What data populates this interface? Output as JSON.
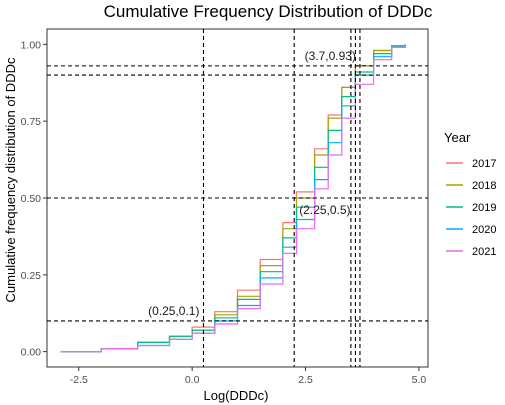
{
  "chart_data": {
    "type": "line",
    "title": "Cumulative Frequency Distribution of DDDc",
    "xlabel": "Log(DDDc)",
    "ylabel": "Cumulative frequency distribution of DDDc",
    "xlim": [
      -3.2,
      5.2
    ],
    "ylim": [
      -0.05,
      1.05
    ],
    "x_ticks": [
      {
        "value": -2.5,
        "label": "-2.5"
      },
      {
        "value": 0.0,
        "label": "0.0"
      },
      {
        "value": 2.5,
        "label": "2.5"
      },
      {
        "value": 5.0,
        "label": "5.0"
      }
    ],
    "y_ticks": [
      {
        "value": 0.0,
        "label": "0.00"
      },
      {
        "value": 0.25,
        "label": "0.25"
      },
      {
        "value": 0.5,
        "label": "0.50"
      },
      {
        "value": 0.75,
        "label": "0.75"
      },
      {
        "value": 1.0,
        "label": "1.00"
      }
    ],
    "grid": false,
    "legend_title": "Year",
    "legend_position": "right",
    "reference_lines": {
      "vertical": [
        0.25,
        2.25,
        3.5,
        3.6,
        3.7
      ],
      "horizontal": [
        0.1,
        0.5,
        0.9,
        0.93
      ]
    },
    "annotations": [
      {
        "text": "(0.25,0.1)",
        "x": 0.25,
        "y": 0.1,
        "anchor": "above-left"
      },
      {
        "text": "(2.25,0.5)",
        "x": 2.25,
        "y": 0.5,
        "anchor": "below-right"
      },
      {
        "text": "(3.7,0.93)",
        "x": 3.7,
        "y": 0.93,
        "anchor": "above-left"
      }
    ],
    "series": [
      {
        "name": "2017",
        "color": "#F8766D",
        "points": [
          [
            -2.9,
            0.0
          ],
          [
            -2.0,
            0.01
          ],
          [
            -1.2,
            0.03
          ],
          [
            -0.5,
            0.05
          ],
          [
            0.0,
            0.08
          ],
          [
            0.5,
            0.13
          ],
          [
            1.0,
            0.2
          ],
          [
            1.5,
            0.3
          ],
          [
            2.0,
            0.42
          ],
          [
            2.3,
            0.52
          ],
          [
            2.7,
            0.66
          ],
          [
            3.0,
            0.77
          ],
          [
            3.3,
            0.86
          ],
          [
            3.6,
            0.93
          ],
          [
            4.0,
            0.98
          ],
          [
            4.4,
            0.995
          ],
          [
            4.7,
            1.0
          ]
        ]
      },
      {
        "name": "2018",
        "color": "#A3A500",
        "points": [
          [
            -2.9,
            0.0
          ],
          [
            -2.0,
            0.01
          ],
          [
            -1.2,
            0.03
          ],
          [
            -0.5,
            0.05
          ],
          [
            0.0,
            0.07
          ],
          [
            0.5,
            0.12
          ],
          [
            1.0,
            0.18
          ],
          [
            1.5,
            0.28
          ],
          [
            2.0,
            0.4
          ],
          [
            2.3,
            0.5
          ],
          [
            2.7,
            0.64
          ],
          [
            3.0,
            0.76
          ],
          [
            3.3,
            0.86
          ],
          [
            3.6,
            0.93
          ],
          [
            4.0,
            0.98
          ],
          [
            4.4,
            0.995
          ],
          [
            4.7,
            1.0
          ]
        ]
      },
      {
        "name": "2019",
        "color": "#00BF7D",
        "points": [
          [
            -2.9,
            0.0
          ],
          [
            -2.0,
            0.01
          ],
          [
            -1.2,
            0.03
          ],
          [
            -0.5,
            0.05
          ],
          [
            0.0,
            0.07
          ],
          [
            0.5,
            0.11
          ],
          [
            1.0,
            0.17
          ],
          [
            1.5,
            0.26
          ],
          [
            2.0,
            0.37
          ],
          [
            2.3,
            0.47
          ],
          [
            2.7,
            0.6
          ],
          [
            3.0,
            0.72
          ],
          [
            3.3,
            0.83
          ],
          [
            3.6,
            0.91
          ],
          [
            4.0,
            0.97
          ],
          [
            4.4,
            0.995
          ],
          [
            4.7,
            1.0
          ]
        ]
      },
      {
        "name": "2020",
        "color": "#00B0F6",
        "points": [
          [
            -2.9,
            0.0
          ],
          [
            -2.0,
            0.01
          ],
          [
            -1.2,
            0.02
          ],
          [
            -0.5,
            0.04
          ],
          [
            0.0,
            0.06
          ],
          [
            0.5,
            0.1
          ],
          [
            1.0,
            0.15
          ],
          [
            1.5,
            0.24
          ],
          [
            2.0,
            0.34
          ],
          [
            2.3,
            0.43
          ],
          [
            2.7,
            0.56
          ],
          [
            3.0,
            0.68
          ],
          [
            3.3,
            0.8
          ],
          [
            3.6,
            0.9
          ],
          [
            4.0,
            0.96
          ],
          [
            4.4,
            0.99
          ],
          [
            4.7,
            1.0
          ]
        ]
      },
      {
        "name": "2021",
        "color": "#E76BF3",
        "points": [
          [
            -2.9,
            0.0
          ],
          [
            -2.0,
            0.01
          ],
          [
            -1.2,
            0.02
          ],
          [
            -0.5,
            0.04
          ],
          [
            0.0,
            0.06
          ],
          [
            0.5,
            0.09
          ],
          [
            1.0,
            0.14
          ],
          [
            1.5,
            0.22
          ],
          [
            2.0,
            0.32
          ],
          [
            2.3,
            0.4
          ],
          [
            2.7,
            0.53
          ],
          [
            3.0,
            0.64
          ],
          [
            3.3,
            0.76
          ],
          [
            3.6,
            0.87
          ],
          [
            4.0,
            0.95
          ],
          [
            4.4,
            0.99
          ],
          [
            4.7,
            1.0
          ]
        ]
      }
    ]
  }
}
